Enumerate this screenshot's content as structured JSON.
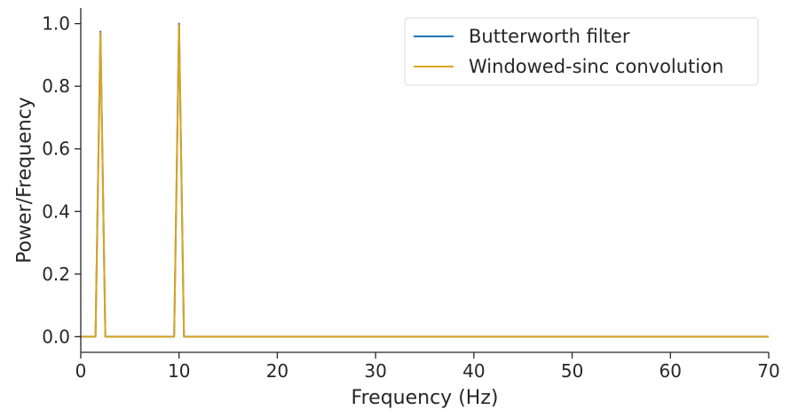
{
  "chart_data": {
    "type": "line",
    "xlabel": "Frequency (Hz)",
    "ylabel": "Power/Frequency",
    "xlim": [
      0,
      70
    ],
    "ylim": [
      -0.05,
      1.05
    ],
    "x_ticks": [
      0,
      10,
      20,
      30,
      40,
      50,
      60,
      70
    ],
    "y_ticks": [
      0.0,
      0.2,
      0.4,
      0.6,
      0.8,
      1.0
    ],
    "x_tick_labels": [
      "0",
      "10",
      "20",
      "30",
      "40",
      "50",
      "60",
      "70"
    ],
    "y_tick_labels": [
      "0.0",
      "0.2",
      "0.4",
      "0.6",
      "0.8",
      "1.0"
    ],
    "grid": false,
    "legend_position": "top-right",
    "series": [
      {
        "name": "Butterworth filter",
        "color": "#1f77b4",
        "x": [
          0,
          1.5,
          2.0,
          2.5,
          9.5,
          10.0,
          10.5,
          70
        ],
        "y": [
          0.0,
          0.0,
          0.975,
          0.0,
          0.0,
          1.0,
          0.0,
          0.0
        ]
      },
      {
        "name": "Windowed-sinc convolution",
        "color": "#daa520",
        "x": [
          0,
          1.5,
          2.0,
          2.5,
          9.5,
          10.0,
          10.5,
          70
        ],
        "y": [
          0.0,
          0.0,
          0.97,
          0.0,
          0.0,
          0.995,
          0.0,
          0.0
        ]
      }
    ]
  }
}
